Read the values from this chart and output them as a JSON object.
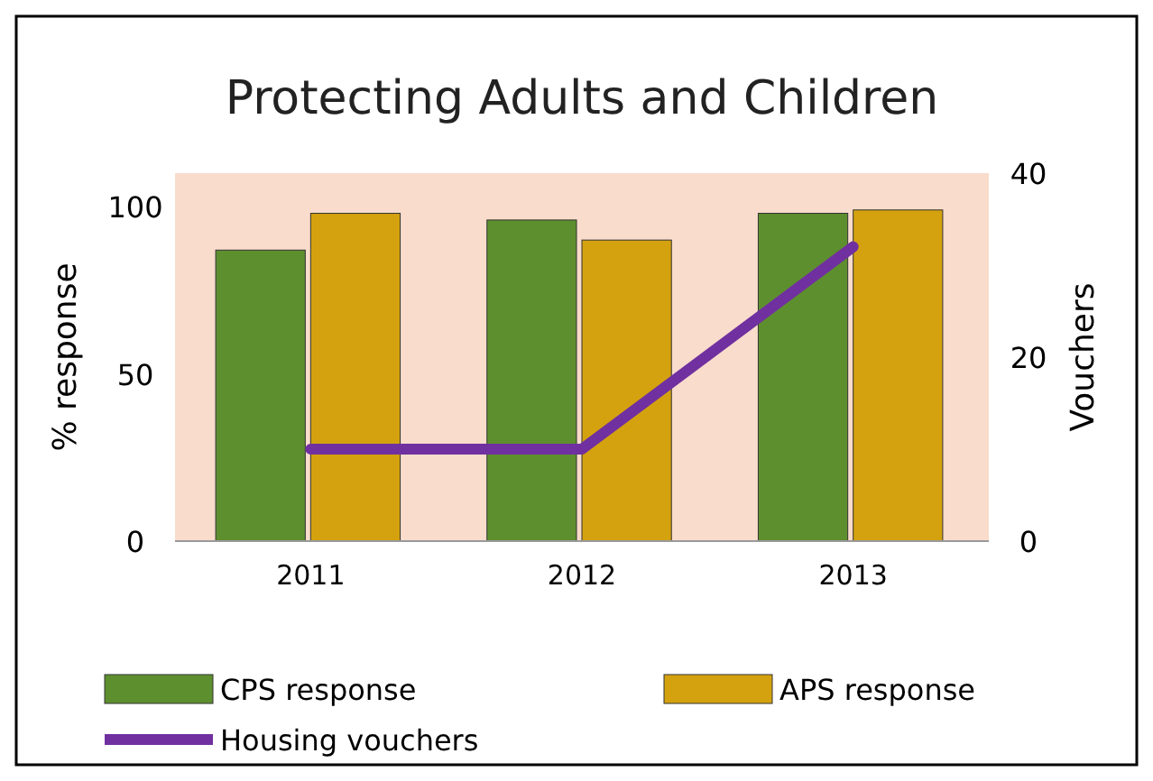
{
  "chart_data": {
    "type": "bar",
    "title": "Protecting Adults and Children",
    "ylabel": "% response",
    "y2label": "Vouchers",
    "categories": [
      "2011",
      "2012",
      "2013"
    ],
    "series": [
      {
        "name": "CPS response",
        "color": "#5e8f2f",
        "values": [
          87,
          96,
          98
        ]
      },
      {
        "name": "APS response",
        "color": "#d4a20f",
        "values": [
          98,
          90,
          99
        ]
      },
      {
        "name": "Housing vouchers",
        "type": "line",
        "axis": "y2",
        "color": "#7030a0",
        "values": [
          10,
          10,
          32
        ]
      }
    ],
    "ylim": [
      0,
      110
    ],
    "yticks": [
      0,
      50,
      100
    ],
    "y2lim": [
      0,
      40
    ],
    "y2ticks": [
      0,
      20,
      40
    ],
    "legend": "bottom",
    "grid": false
  }
}
